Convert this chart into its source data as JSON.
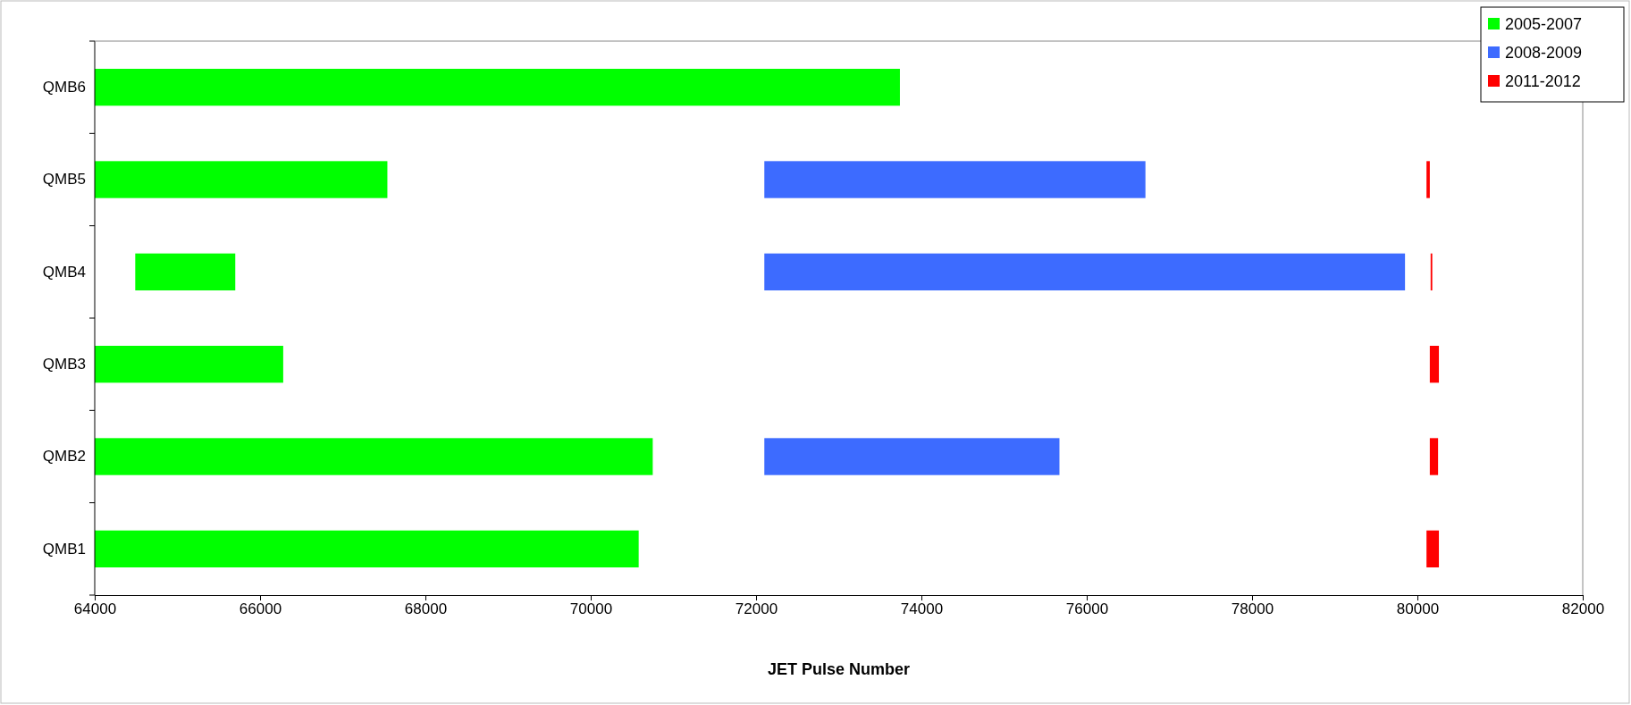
{
  "chart_data": {
    "type": "bar",
    "orientation": "horizontal",
    "xlabel": "JET Pulse Number",
    "categories": [
      "QMB6",
      "QMB5",
      "QMB4",
      "QMB3",
      "QMB2",
      "QMB1"
    ],
    "series": [
      {
        "name": "2005-2007",
        "color": "#00ff00",
        "base": [
          64000,
          64000,
          64490,
          64000,
          64000,
          64000
        ],
        "values": [
          9740,
          3540,
          1210,
          2280,
          6750,
          6580
        ]
      },
      {
        "name": "2008-2009",
        "color": "#3d6bff",
        "base": [
          null,
          72100,
          72100,
          null,
          72100,
          null
        ],
        "values": [
          null,
          4610,
          7750,
          null,
          3570,
          null
        ]
      },
      {
        "name": "2011-2012",
        "color": "#ff0000",
        "base": [
          null,
          80110,
          80160,
          80150,
          80150,
          80110
        ],
        "values": [
          null,
          40,
          20,
          110,
          100,
          150
        ]
      }
    ],
    "xlim": [
      64000,
      82000
    ],
    "xticks": [
      64000,
      66000,
      68000,
      70000,
      72000,
      74000,
      76000,
      78000,
      80000,
      82000
    ],
    "grid": false,
    "legend": "top right"
  }
}
